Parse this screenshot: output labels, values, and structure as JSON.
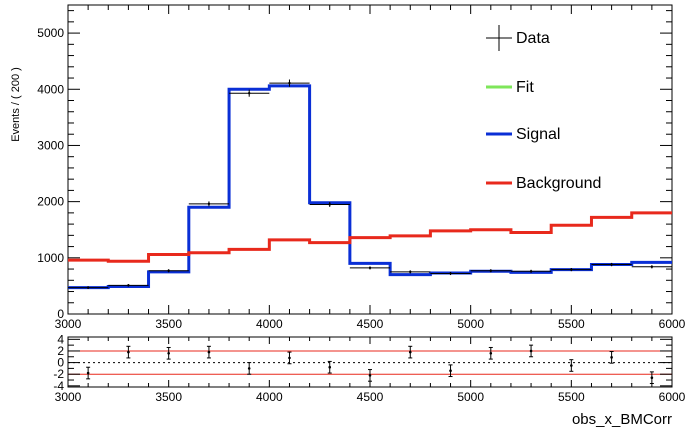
{
  "chart_data": [
    {
      "type": "line",
      "panel": "main",
      "xlim": [
        3000,
        6000
      ],
      "ylim": [
        0,
        5500
      ],
      "ylabel": "Events / ( 200 )",
      "xticks": [
        3000,
        3500,
        4000,
        4500,
        5000,
        5500,
        6000
      ],
      "yticks": [
        0,
        1000,
        2000,
        3000,
        4000,
        5000
      ],
      "bin_edges": [
        3000,
        3200,
        3400,
        3600,
        3800,
        4000,
        4200,
        4400,
        4600,
        4800,
        5000,
        5200,
        5400,
        5600,
        5800,
        6000
      ],
      "legend": {
        "placement": "top-right",
        "entries": [
          {
            "label": "Data",
            "color": "#000000"
          },
          {
            "label": "Fit",
            "color": "#7ee65a"
          },
          {
            "label": "Signal",
            "color": "#0a2fd6"
          },
          {
            "label": "Background",
            "color": "#e8291c"
          }
        ]
      },
      "data_points": {
        "x": [
          3100,
          3300,
          3500,
          3700,
          3900,
          4100,
          4300,
          4500,
          4700,
          4900,
          5100,
          5300,
          5500,
          5700,
          5900
        ],
        "y": [
          470,
          510,
          770,
          1960,
          3930,
          4110,
          1950,
          820,
          750,
          720,
          770,
          760,
          790,
          880,
          840
        ]
      },
      "series": [
        {
          "name": "Signal",
          "color": "#0a2fd6",
          "values": [
            470,
            490,
            750,
            1900,
            4000,
            4060,
            1980,
            900,
            700,
            730,
            760,
            740,
            790,
            880,
            920
          ]
        },
        {
          "name": "Background",
          "color": "#e8291c",
          "values": [
            960,
            940,
            1060,
            1090,
            1150,
            1320,
            1270,
            1360,
            1390,
            1480,
            1500,
            1450,
            1580,
            1720,
            1800
          ]
        }
      ]
    },
    {
      "type": "scatter",
      "panel": "pull",
      "xlabel": "obs_x_BMCorr",
      "xlim": [
        3000,
        6000
      ],
      "ylim": [
        -4.2,
        4.4
      ],
      "yticks": [
        -4,
        -2,
        0,
        2,
        4
      ],
      "xticks": [
        3000,
        3500,
        4000,
        4500,
        5000,
        5500,
        6000
      ],
      "ref_lines": {
        "red": [
          -2,
          2
        ],
        "dotted": [
          0
        ]
      },
      "x": [
        3100,
        3300,
        3500,
        3700,
        3900,
        4100,
        4300,
        4500,
        4700,
        4900,
        5100,
        5300,
        5500,
        5700,
        5900
      ],
      "y": [
        -1.8,
        1.8,
        1.6,
        1.8,
        -1.0,
        0.8,
        -0.8,
        -2.2,
        1.8,
        -1.4,
        1.6,
        2.0,
        -0.5,
        0.9,
        -2.6
      ]
    }
  ]
}
